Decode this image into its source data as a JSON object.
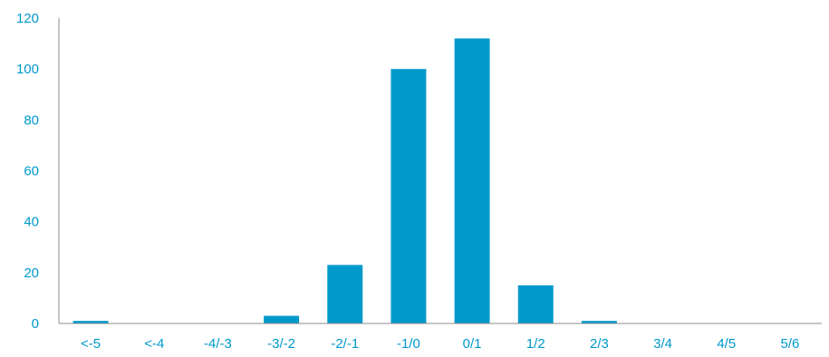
{
  "chart_data": {
    "type": "bar",
    "categories": [
      "<-5",
      "<-4",
      "-4/-3",
      "-3/-2",
      "-2/-1",
      "-1/0",
      "0/1",
      "1/2",
      "2/3",
      "3/4",
      "4/5",
      "5/6"
    ],
    "values": [
      1,
      0,
      0,
      3,
      23,
      100,
      112,
      15,
      1,
      0,
      0,
      0
    ],
    "title": "",
    "xlabel": "",
    "ylabel": "",
    "ylim": [
      0,
      120
    ],
    "yticks": [
      0,
      20,
      40,
      60,
      80,
      100,
      120
    ],
    "grid": false,
    "legend": "none",
    "colors": {
      "bar": "#0099cc",
      "label": "#0099cc",
      "axis": "#8c8c8c"
    }
  }
}
